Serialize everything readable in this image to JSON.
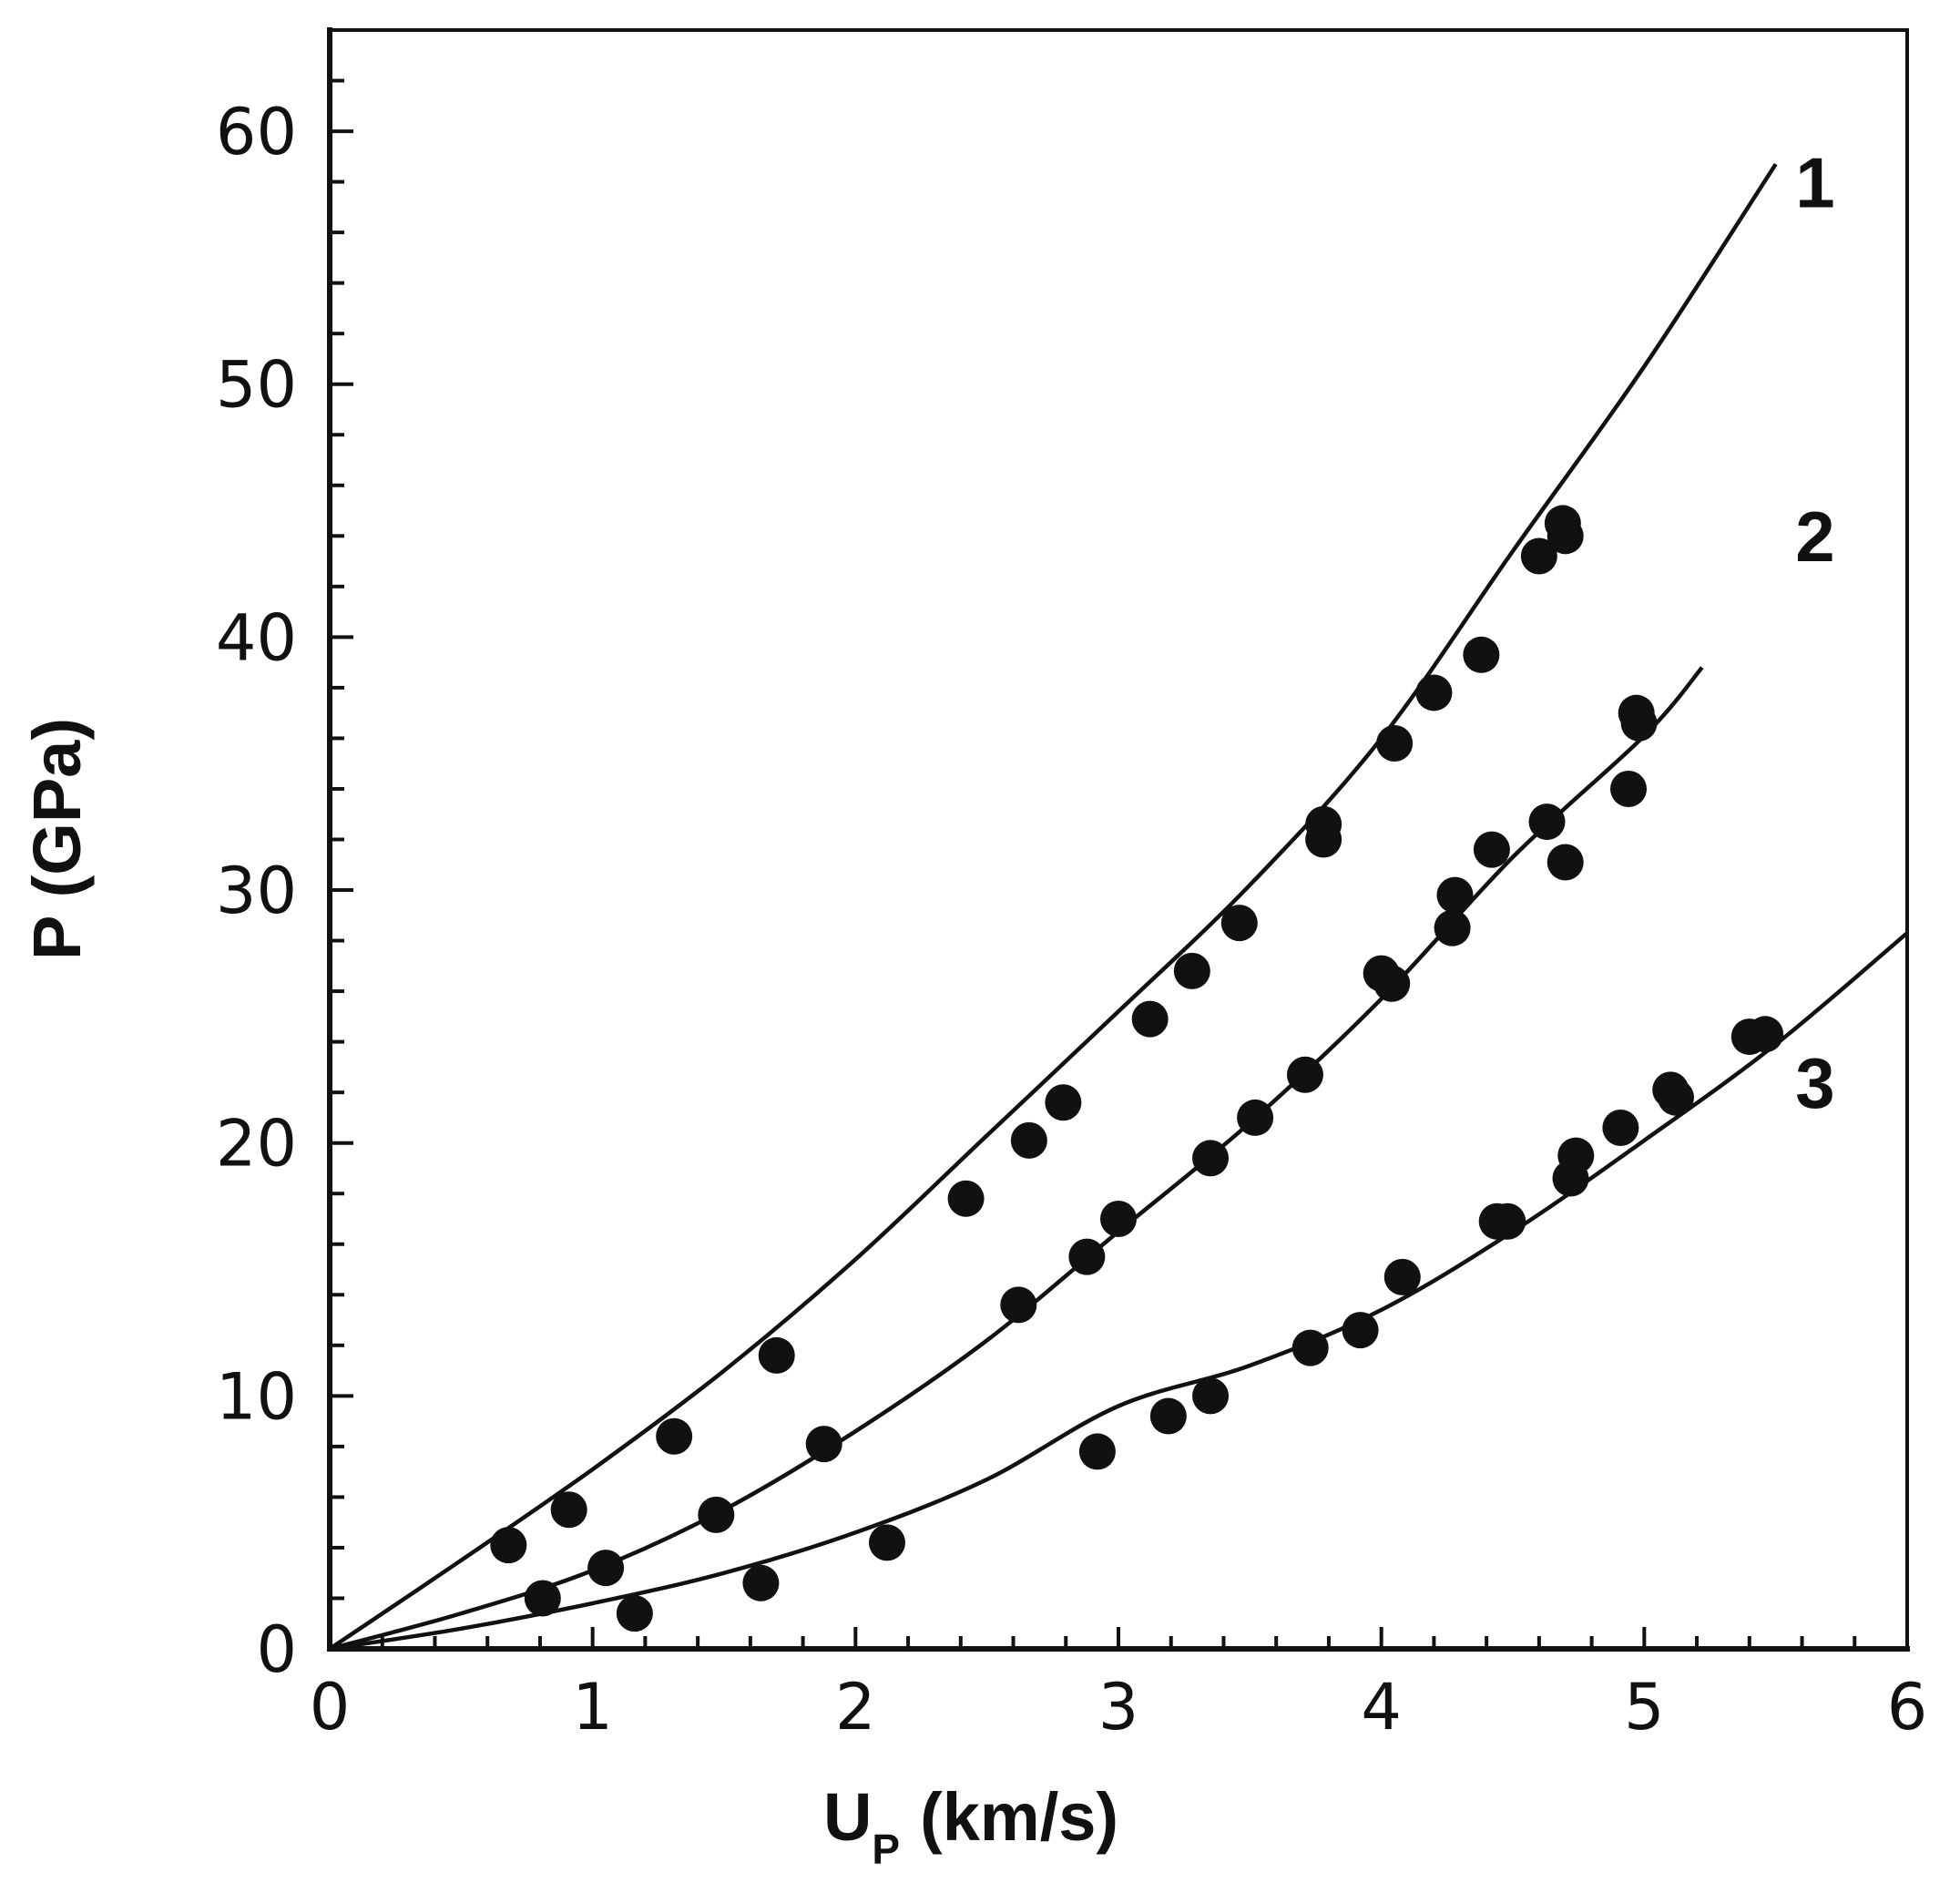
{
  "chart_data": {
    "type": "scatter",
    "title": "",
    "xlabel": "U",
    "xlabel_subscript": "P",
    "xlabel_units": "(km/s)",
    "ylabel": "P (GPa)",
    "xlim": [
      0,
      6
    ],
    "ylim": [
      0,
      64
    ],
    "x_major_ticks": [
      "0",
      "1",
      "2",
      "3",
      "4",
      "5",
      "6"
    ],
    "y_major_ticks": [
      "0",
      "10",
      "20",
      "30",
      "40",
      "50",
      "60"
    ],
    "x_minor_step": 0.2,
    "y_minor_step": 2,
    "grid": false,
    "series": [
      {
        "name": "1",
        "label_position": [
          5.65,
          57
        ],
        "line": [
          [
            0,
            0
          ],
          [
            0.5,
            3.5
          ],
          [
            1.0,
            7.1
          ],
          [
            1.5,
            11.0
          ],
          [
            2.0,
            15.4
          ],
          [
            2.5,
            20.3
          ],
          [
            3.0,
            25.2
          ],
          [
            3.5,
            30.2
          ],
          [
            4.0,
            36.0
          ],
          [
            4.5,
            43.4
          ],
          [
            5.0,
            50.7
          ],
          [
            5.5,
            58.7
          ]
        ],
        "points": [
          [
            0.68,
            4.1
          ],
          [
            0.91,
            5.5
          ],
          [
            1.31,
            8.4
          ],
          [
            1.7,
            11.6
          ],
          [
            2.42,
            17.8
          ],
          [
            2.66,
            20.1
          ],
          [
            2.79,
            21.6
          ],
          [
            3.12,
            24.9
          ],
          [
            3.28,
            26.8
          ],
          [
            3.46,
            28.7
          ],
          [
            3.78,
            32.6
          ],
          [
            3.78,
            32.0
          ],
          [
            4.05,
            35.8
          ],
          [
            4.2,
            37.8
          ],
          [
            4.38,
            39.3
          ],
          [
            4.6,
            43.2
          ],
          [
            4.69,
            44.5
          ],
          [
            4.7,
            44.0
          ]
        ]
      },
      {
        "name": "2",
        "label_position": [
          5.65,
          43
        ],
        "line": [
          [
            0,
            0
          ],
          [
            0.5,
            1.4
          ],
          [
            1.0,
            3.1
          ],
          [
            1.5,
            5.5
          ],
          [
            2.0,
            8.6
          ],
          [
            2.5,
            12.2
          ],
          [
            3.0,
            16.5
          ],
          [
            3.5,
            20.8
          ],
          [
            4.0,
            25.7
          ],
          [
            4.5,
            31.3
          ],
          [
            5.0,
            36.1
          ],
          [
            5.22,
            38.8
          ]
        ],
        "points": [
          [
            0.81,
            2.0
          ],
          [
            1.05,
            3.2
          ],
          [
            1.47,
            5.3
          ],
          [
            1.88,
            8.1
          ],
          [
            2.62,
            13.6
          ],
          [
            2.88,
            15.5
          ],
          [
            3.0,
            17.0
          ],
          [
            3.35,
            19.4
          ],
          [
            3.52,
            21.0
          ],
          [
            3.71,
            22.7
          ],
          [
            4.0,
            26.7
          ],
          [
            4.04,
            26.3
          ],
          [
            4.27,
            28.5
          ],
          [
            4.28,
            29.8
          ],
          [
            4.42,
            31.6
          ],
          [
            4.63,
            32.7
          ],
          [
            4.7,
            31.1
          ],
          [
            4.94,
            34.0
          ],
          [
            4.97,
            37.0
          ],
          [
            4.98,
            36.6
          ]
        ]
      },
      {
        "name": "3",
        "label_position": [
          5.65,
          21.4
        ],
        "line": [
          [
            0,
            0
          ],
          [
            0.5,
            0.8
          ],
          [
            1.0,
            1.8
          ],
          [
            1.5,
            3.0
          ],
          [
            2.0,
            4.6
          ],
          [
            2.5,
            6.7
          ],
          [
            3.0,
            9.6
          ],
          [
            3.5,
            11.2
          ],
          [
            4.0,
            13.4
          ],
          [
            4.5,
            16.5
          ],
          [
            5.0,
            20.1
          ],
          [
            5.5,
            23.9
          ],
          [
            6.0,
            28.3
          ]
        ],
        "points": [
          [
            1.16,
            1.4
          ],
          [
            1.64,
            2.6
          ],
          [
            2.12,
            4.2
          ],
          [
            2.92,
            7.8
          ],
          [
            3.19,
            9.2
          ],
          [
            3.35,
            10.0
          ],
          [
            3.73,
            11.9
          ],
          [
            3.92,
            12.6
          ],
          [
            4.08,
            14.7
          ],
          [
            4.44,
            16.9
          ],
          [
            4.48,
            16.9
          ],
          [
            4.72,
            18.6
          ],
          [
            4.74,
            19.5
          ],
          [
            4.91,
            20.6
          ],
          [
            5.1,
            22.1
          ],
          [
            5.12,
            21.8
          ],
          [
            5.4,
            24.2
          ],
          [
            5.46,
            24.3
          ]
        ]
      }
    ]
  }
}
